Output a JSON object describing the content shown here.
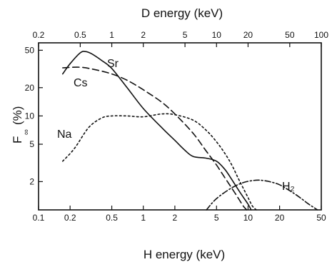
{
  "chart_data": {
    "type": "line",
    "title": "",
    "x_axis_bottom": {
      "label": "H energy (keV)",
      "scale": "log",
      "range": [
        0.1,
        50
      ],
      "ticks": [
        0.1,
        0.2,
        0.5,
        1,
        2,
        5,
        10,
        20,
        50
      ],
      "tick_labels": [
        "0.1",
        "0.2",
        "0.5",
        "1",
        "2",
        "5",
        "10",
        "20",
        "50"
      ]
    },
    "x_axis_top": {
      "label": "D energy (keV)",
      "scale": "log",
      "range": [
        0.2,
        100
      ],
      "ticks": [
        0.2,
        0.5,
        1,
        2,
        5,
        10,
        20,
        50,
        100
      ],
      "tick_labels": [
        "0.2",
        "0.5",
        "1",
        "2",
        "5",
        "10",
        "20",
        "50",
        "100"
      ]
    },
    "y_axis": {
      "label": "F∞ (%)",
      "label_main": "F",
      "label_sub": "∞",
      "label_unit": "(%)",
      "scale": "log",
      "range": [
        1,
        60
      ],
      "ticks": [
        2,
        5,
        10,
        20,
        50
      ],
      "tick_labels": [
        "2",
        "5",
        "10",
        "20",
        "50"
      ]
    },
    "grid": false,
    "series": [
      {
        "name": "Sr",
        "style": "solid",
        "points": [
          [
            0.17,
            28
          ],
          [
            0.2,
            36
          ],
          [
            0.25,
            47
          ],
          [
            0.28,
            48.5
          ],
          [
            0.32,
            46
          ],
          [
            0.4,
            39
          ],
          [
            0.5,
            32
          ],
          [
            0.7,
            20
          ],
          [
            1.0,
            12
          ],
          [
            1.5,
            7.5
          ],
          [
            2.0,
            5.5
          ],
          [
            2.5,
            4.3
          ],
          [
            3.0,
            3.7
          ],
          [
            4.0,
            3.55
          ],
          [
            5.0,
            3.3
          ],
          [
            6.0,
            2.7
          ],
          [
            7.0,
            2.1
          ],
          [
            8.5,
            1.5
          ],
          [
            10.0,
            1.15
          ],
          [
            10.7,
            1.0
          ]
        ]
      },
      {
        "name": "Cs",
        "style": "dashed",
        "points": [
          [
            0.17,
            32.5
          ],
          [
            0.25,
            33
          ],
          [
            0.35,
            31
          ],
          [
            0.5,
            28
          ],
          [
            0.7,
            24
          ],
          [
            1.0,
            19
          ],
          [
            1.5,
            14
          ],
          [
            2.0,
            10.5
          ],
          [
            3.0,
            6.5
          ],
          [
            4.0,
            4.2
          ],
          [
            5.0,
            3.0
          ],
          [
            6.0,
            2.2
          ],
          [
            7.0,
            1.7
          ],
          [
            8.0,
            1.35
          ],
          [
            9.0,
            1.1
          ],
          [
            9.7,
            1.0
          ]
        ]
      },
      {
        "name": "Na",
        "style": "dotted",
        "points": [
          [
            0.17,
            3.3
          ],
          [
            0.22,
            4.5
          ],
          [
            0.3,
            7.5
          ],
          [
            0.4,
            9.5
          ],
          [
            0.5,
            10
          ],
          [
            0.7,
            10
          ],
          [
            1.0,
            9.8
          ],
          [
            1.5,
            10.5
          ],
          [
            2.0,
            10.3
          ],
          [
            3.0,
            9
          ],
          [
            4.0,
            7
          ],
          [
            5.0,
            5.3
          ],
          [
            6.0,
            4
          ],
          [
            7.0,
            3
          ],
          [
            8.0,
            2.2
          ],
          [
            9.0,
            1.7
          ],
          [
            10.0,
            1.35
          ],
          [
            11.0,
            1.1
          ],
          [
            12.0,
            1.0
          ]
        ]
      },
      {
        "name": "H₂",
        "style": "dash-dot",
        "points": [
          [
            4.0,
            1.0
          ],
          [
            5.0,
            1.32
          ],
          [
            7.0,
            1.72
          ],
          [
            9.0,
            1.95
          ],
          [
            11.0,
            2.05
          ],
          [
            13.0,
            2.07
          ],
          [
            16.0,
            2.0
          ],
          [
            20.0,
            1.85
          ],
          [
            25.0,
            1.6
          ],
          [
            30.0,
            1.4
          ],
          [
            38.0,
            1.15
          ],
          [
            46.0,
            1.0
          ]
        ]
      }
    ]
  }
}
